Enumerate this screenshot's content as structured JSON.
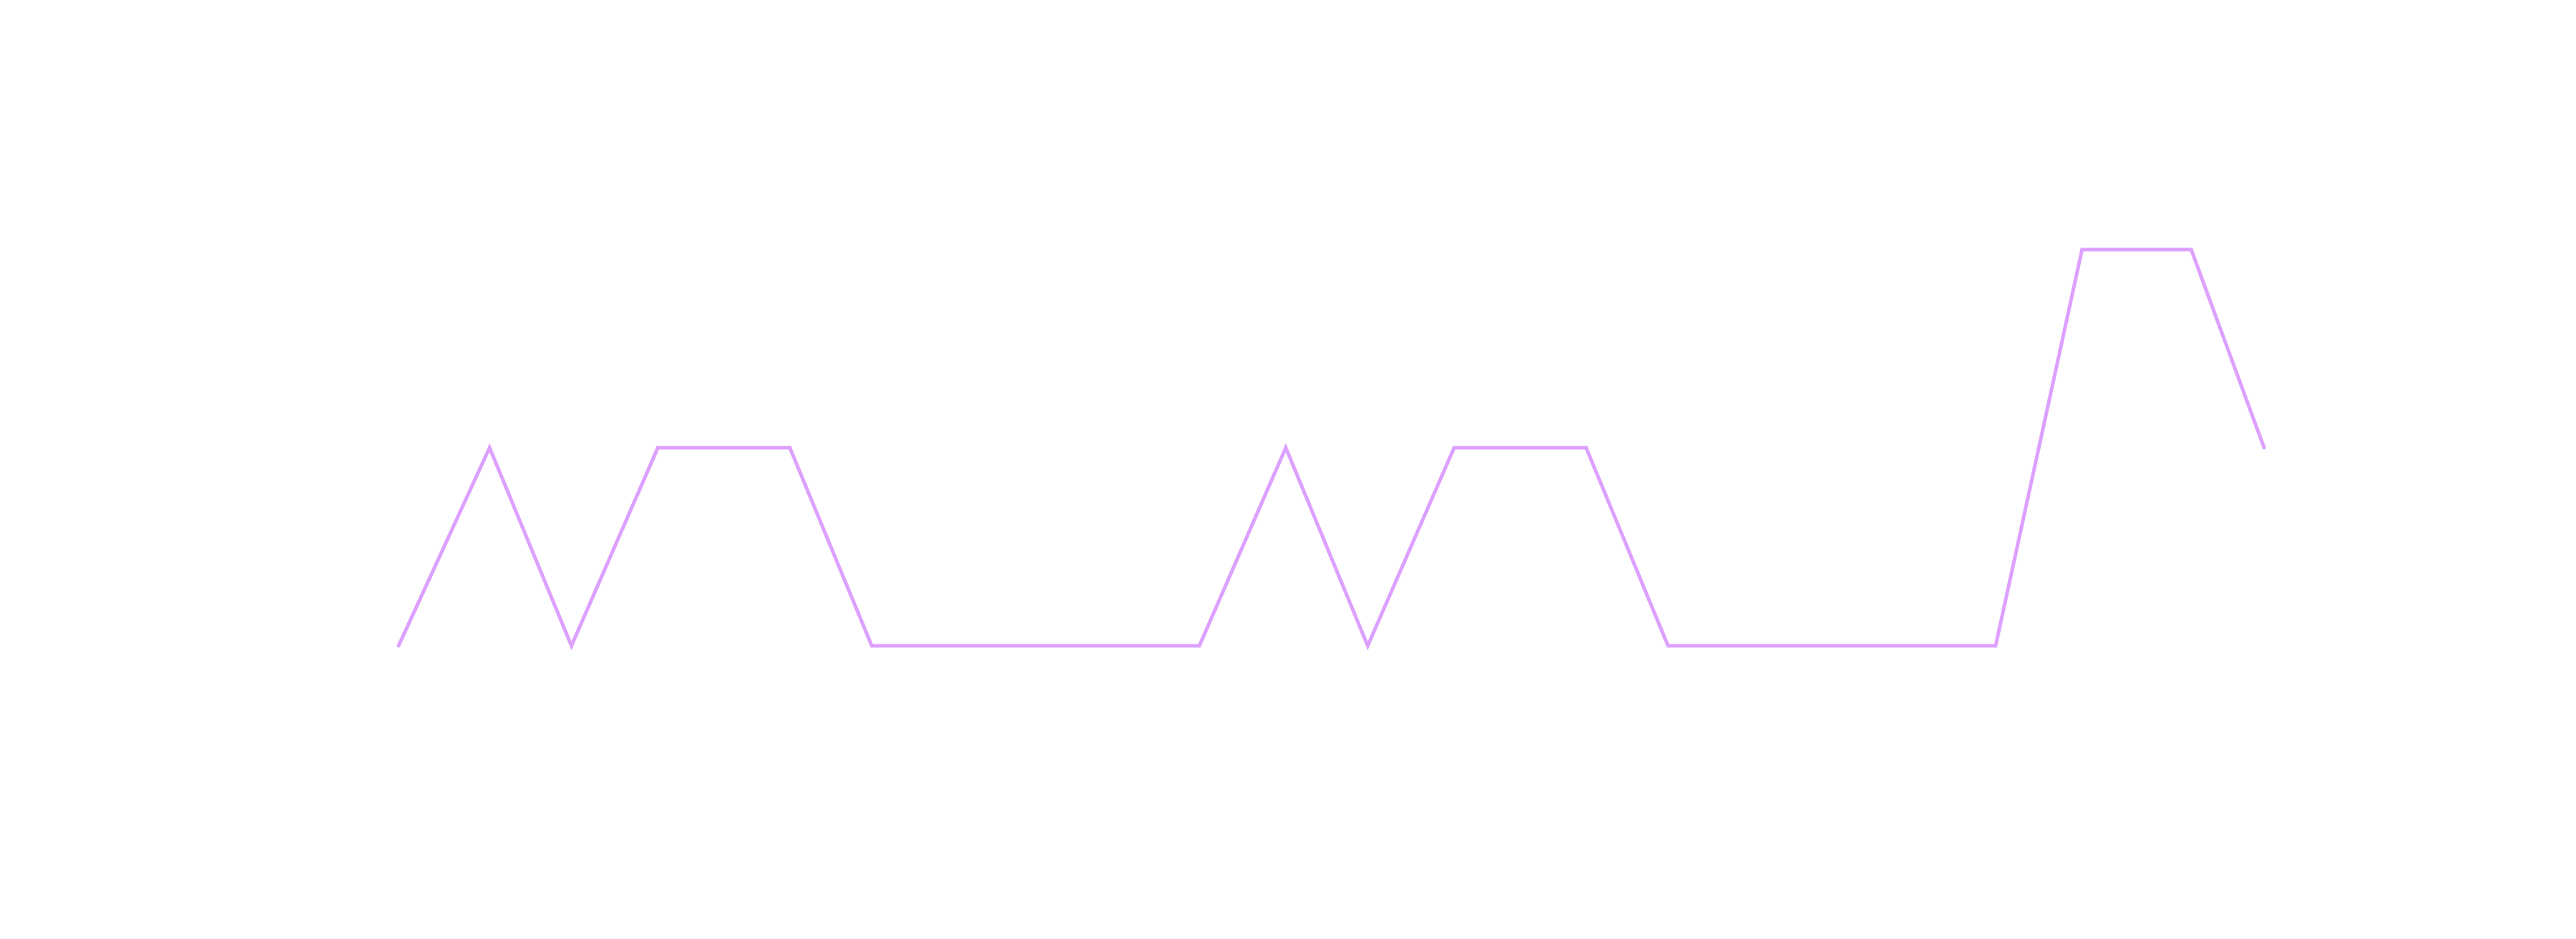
{
  "chart_data": {
    "type": "line",
    "title": "",
    "xlabel": "",
    "ylabel": "",
    "grid": false,
    "legend": "none",
    "xlim": [
      0,
      23
    ],
    "ylim": [
      0,
      4
    ],
    "series": [
      {
        "color": "#dda0ff",
        "points": [
          [
            0,
            1
          ],
          [
            1.0,
            2
          ],
          [
            1.9,
            1
          ],
          [
            2.85,
            2
          ],
          [
            4.3,
            2
          ],
          [
            5.2,
            1
          ],
          [
            8.8,
            1
          ],
          [
            9.75,
            2
          ],
          [
            10.65,
            1
          ],
          [
            11.6,
            2
          ],
          [
            13.05,
            2
          ],
          [
            13.95,
            1
          ],
          [
            17.55,
            1
          ],
          [
            18.5,
            3
          ],
          [
            19.7,
            3
          ],
          [
            20.5,
            2
          ]
        ]
      }
    ]
  }
}
